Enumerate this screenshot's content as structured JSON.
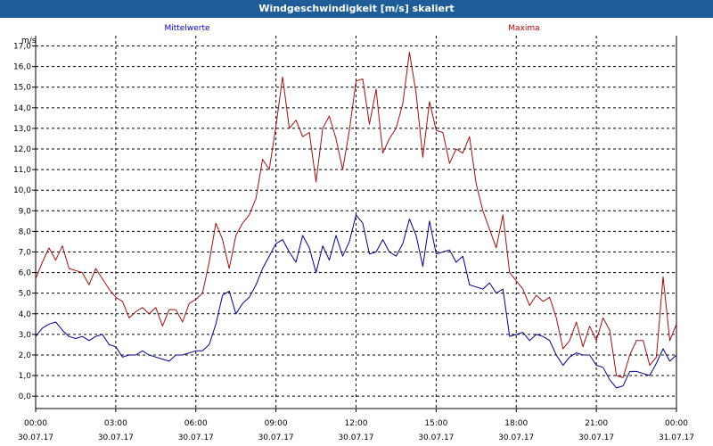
{
  "window": {
    "title": "Windgeschwindigkeit [m/s] skaliert"
  },
  "chart_data": {
    "type": "line",
    "title": "Windgeschwindigkeit [m/s] skaliert",
    "ylabel": "m/s",
    "ylim": [
      -0.6,
      17.5
    ],
    "y_ticks": [
      "0,0",
      "1,0",
      "2,0",
      "3,0",
      "4,0",
      "5,0",
      "6,0",
      "7,0",
      "8,0",
      "9,0",
      "10,0",
      "11,0",
      "12,0",
      "13,0",
      "14,0",
      "15,0",
      "16,0",
      "17,0"
    ],
    "x_ticks": [
      {
        "time": "00:00",
        "date": "30.07.17"
      },
      {
        "time": "03:00",
        "date": "30.07.17"
      },
      {
        "time": "06:00",
        "date": "30.07.17"
      },
      {
        "time": "09:00",
        "date": "30.07.17"
      },
      {
        "time": "12:00",
        "date": "30.07.17"
      },
      {
        "time": "15:00",
        "date": "30.07.17"
      },
      {
        "time": "18:00",
        "date": "30.07.17"
      },
      {
        "time": "21:00",
        "date": "30.07.17"
      },
      {
        "time": "00:00",
        "date": "31.07.17"
      }
    ],
    "grid": true,
    "series": [
      {
        "name": "Mittelwerte",
        "color": "#00008b",
        "x": [
          0,
          0.25,
          0.5,
          0.75,
          1,
          1.25,
          1.5,
          1.75,
          2,
          2.25,
          2.5,
          2.75,
          3,
          3.25,
          3.5,
          3.75,
          4,
          4.25,
          4.5,
          4.75,
          5,
          5.25,
          5.5,
          5.75,
          6,
          6.25,
          6.5,
          6.75,
          7,
          7.25,
          7.5,
          7.75,
          8,
          8.25,
          8.5,
          8.75,
          9,
          9.25,
          9.5,
          9.75,
          10,
          10.25,
          10.5,
          10.75,
          11,
          11.25,
          11.5,
          11.75,
          12,
          12.25,
          12.5,
          12.75,
          13,
          13.25,
          13.5,
          13.75,
          14,
          14.25,
          14.5,
          14.75,
          15,
          15.25,
          15.5,
          15.75,
          16,
          16.25,
          16.5,
          16.75,
          17,
          17.25,
          17.5,
          17.75,
          18,
          18.25,
          18.5,
          18.75,
          19,
          19.25,
          19.5,
          19.75,
          20,
          20.25,
          20.5,
          20.75,
          21,
          21.25,
          21.5,
          21.75,
          22,
          22.25,
          22.5,
          22.75,
          23,
          23.25,
          23.5,
          23.75,
          24
        ],
        "values": [
          2.9,
          3.3,
          3.5,
          3.6,
          3.2,
          2.9,
          2.8,
          2.9,
          2.7,
          2.9,
          3.0,
          2.5,
          2.4,
          1.9,
          2.0,
          2.0,
          2.2,
          2.0,
          1.9,
          1.8,
          1.7,
          2.0,
          2.0,
          2.1,
          2.2,
          2.2,
          2.5,
          3.5,
          4.9,
          5.1,
          4.0,
          4.5,
          4.8,
          5.4,
          6.2,
          6.8,
          7.4,
          7.6,
          7.0,
          6.5,
          7.8,
          7.2,
          6.0,
          7.3,
          6.6,
          7.8,
          6.8,
          7.5,
          8.8,
          8.4,
          6.9,
          7.0,
          7.6,
          7.0,
          6.8,
          7.4,
          8.6,
          7.8,
          6.3,
          8.5,
          6.9,
          7.0,
          7.1,
          6.5,
          6.8,
          5.4,
          5.3,
          5.2,
          5.5,
          5.0,
          5.2,
          2.9,
          3.0,
          3.1,
          2.7,
          3.0,
          2.9,
          2.7,
          2.0,
          1.5,
          1.9,
          2.1,
          2.0,
          2.0,
          1.5,
          1.4,
          0.8,
          0.4,
          0.5,
          1.2,
          1.2,
          1.1,
          1.0,
          1.6,
          2.3,
          1.7,
          2.0
        ]
      },
      {
        "name": "Maxima",
        "color": "#a01010",
        "x": [
          0,
          0.25,
          0.5,
          0.75,
          1,
          1.25,
          1.5,
          1.75,
          2,
          2.25,
          2.5,
          2.75,
          3,
          3.25,
          3.5,
          3.75,
          4,
          4.25,
          4.5,
          4.75,
          5,
          5.25,
          5.5,
          5.75,
          6,
          6.25,
          6.5,
          6.75,
          7,
          7.25,
          7.5,
          7.75,
          8,
          8.25,
          8.5,
          8.75,
          9,
          9.25,
          9.5,
          9.75,
          10,
          10.25,
          10.5,
          10.75,
          11,
          11.25,
          11.5,
          11.75,
          12,
          12.25,
          12.5,
          12.75,
          13,
          13.25,
          13.5,
          13.75,
          14,
          14.25,
          14.5,
          14.75,
          15,
          15.25,
          15.5,
          15.75,
          16,
          16.25,
          16.5,
          16.75,
          17,
          17.25,
          17.5,
          17.75,
          18,
          18.25,
          18.5,
          18.75,
          19,
          19.25,
          19.5,
          19.75,
          20,
          20.25,
          20.5,
          20.75,
          21,
          21.25,
          21.5,
          21.75,
          22,
          22.25,
          22.5,
          22.75,
          23,
          23.25,
          23.5,
          23.75,
          24
        ],
        "values": [
          5.7,
          6.5,
          7.2,
          6.6,
          7.3,
          6.2,
          6.1,
          6.0,
          5.4,
          6.2,
          5.7,
          5.2,
          4.8,
          4.6,
          3.8,
          4.1,
          4.3,
          4.0,
          4.3,
          3.4,
          4.2,
          4.2,
          3.6,
          4.5,
          4.7,
          5.0,
          6.5,
          8.4,
          7.6,
          6.2,
          7.8,
          8.4,
          8.8,
          9.6,
          11.5,
          11.0,
          13.1,
          15.5,
          13.0,
          13.4,
          12.6,
          12.8,
          10.4,
          13.0,
          13.6,
          12.5,
          11.0,
          12.9,
          15.3,
          15.4,
          13.2,
          14.9,
          11.8,
          12.5,
          13.0,
          14.2,
          16.7,
          14.7,
          11.6,
          14.3,
          12.9,
          12.8,
          11.3,
          12.0,
          11.8,
          12.6,
          10.3,
          9.0,
          8.1,
          7.2,
          8.8,
          6.0,
          5.6,
          5.2,
          4.4,
          4.9,
          4.6,
          4.8,
          3.8,
          2.3,
          2.7,
          3.6,
          2.4,
          3.4,
          2.7,
          3.8,
          3.2,
          1.0,
          0.9,
          2.0,
          2.7,
          2.7,
          1.5,
          1.9,
          5.8,
          2.7,
          3.5
        ]
      }
    ]
  }
}
